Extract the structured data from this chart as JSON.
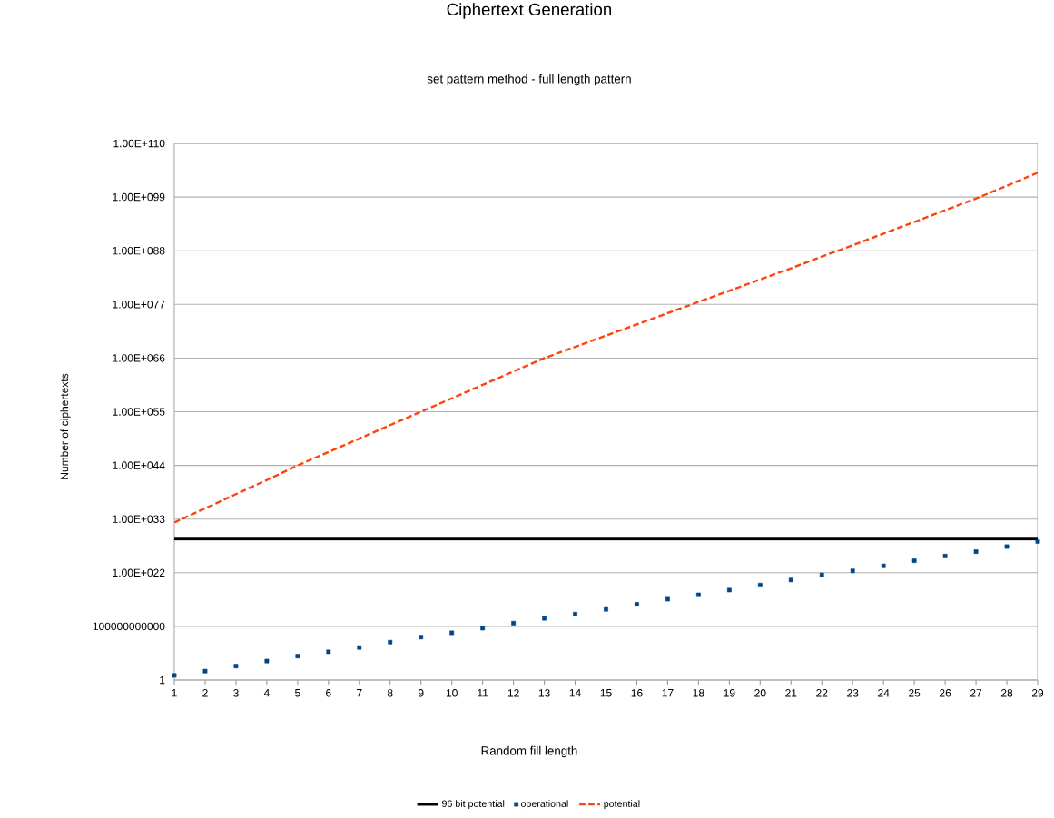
{
  "chart_data": {
    "type": "line",
    "title": "Ciphertext Generation",
    "subtitle": "set pattern method - full length pattern",
    "xlabel": "Random fill length",
    "ylabel": "Number of ciphertexts",
    "categories": [
      "1",
      "2",
      "3",
      "4",
      "5",
      "6",
      "7",
      "8",
      "9",
      "10",
      "11",
      "12",
      "13",
      "14",
      "15",
      "16",
      "17",
      "18",
      "19",
      "20",
      "21",
      "22",
      "23",
      "24",
      "25",
      "26",
      "27",
      "28",
      "29"
    ],
    "series": [
      {
        "name": "96 bit potential",
        "type": "line",
        "color": "#000000",
        "line_style": "solid",
        "values": [
          7.9e+28,
          7.9e+28,
          7.9e+28,
          7.9e+28,
          7.9e+28,
          7.9e+28,
          7.9e+28,
          7.9e+28,
          7.9e+28,
          7.9e+28,
          7.9e+28,
          7.9e+28,
          7.9e+28,
          7.9e+28,
          7.9e+28,
          7.9e+28,
          7.9e+28,
          7.9e+28,
          7.9e+28,
          7.9e+28,
          7.9e+28,
          7.9e+28,
          7.9e+28,
          7.9e+28,
          7.9e+28,
          7.9e+28,
          7.9e+28,
          7.9e+28,
          7.9e+28
        ]
      },
      {
        "name": "operational",
        "type": "scatter",
        "color": "#004586",
        "marker": "square",
        "values": [
          8.9,
          68,
          720,
          7800,
          81000.0,
          620000.0,
          4700000.0,
          59000000.0,
          630000000.0,
          4800000000.0,
          43000000000.0,
          460000000000.0,
          4400000000000.0,
          34000000000000.0,
          310000000000000.0,
          3500000000000000.0,
          3.8e+16,
          3e+17,
          2.8e+18,
          3e+19,
          3.3e+20,
          3.6e+21,
          2.4e+22,
          2.6e+23,
          2.9e+24,
          2.7e+25,
          2.1e+26,
          2.3e+27,
          2.5e+28
        ]
      },
      {
        "name": "potential",
        "type": "line",
        "color": "#ff420e",
        "line_style": "dashed",
        "values": [
          2e+32,
          1.6e+35,
          1.3e+38,
          1e+41,
          1e+44,
          5.6e+46,
          3.2e+49,
          1.8e+52,
          1e+55,
          5.6e+57,
          3.2e+60,
          1.8e+63,
          1e+66,
          2e+68,
          4e+70,
          7.9e+72,
          1.6e+75,
          3.2e+77,
          6.3e+79,
          1.3e+82,
          2.5e+84,
          6.3e+86,
          1.3e+89,
          3.2e+91,
          7.9e+93,
          2e+96,
          5e+98,
          2e+101,
          1e+104
        ]
      }
    ],
    "log": "y",
    "ylim": [
      1,
      1e+110
    ],
    "yticks": [
      1,
      {
        "value": 100000000000.0,
        "label": "100000000000"
      },
      {
        "value": 1e+22,
        "label": "1.00E+022"
      },
      {
        "value": 1e+33,
        "label": "1.00E+033"
      },
      {
        "value": 1e+44,
        "label": "1.00E+044"
      },
      {
        "value": 1e+55,
        "label": "1.00E+055"
      },
      {
        "value": 1e+66,
        "label": "1.00E+066"
      },
      {
        "value": 1e+77,
        "label": "1.00E+077"
      },
      {
        "value": 1e+88,
        "label": "1.00E+088"
      },
      {
        "value": 1e+99,
        "label": "1.00E+099"
      },
      {
        "value": 1e+110,
        "label": "1.00E+110"
      }
    ],
    "grid": "y",
    "legend": "bottom"
  }
}
